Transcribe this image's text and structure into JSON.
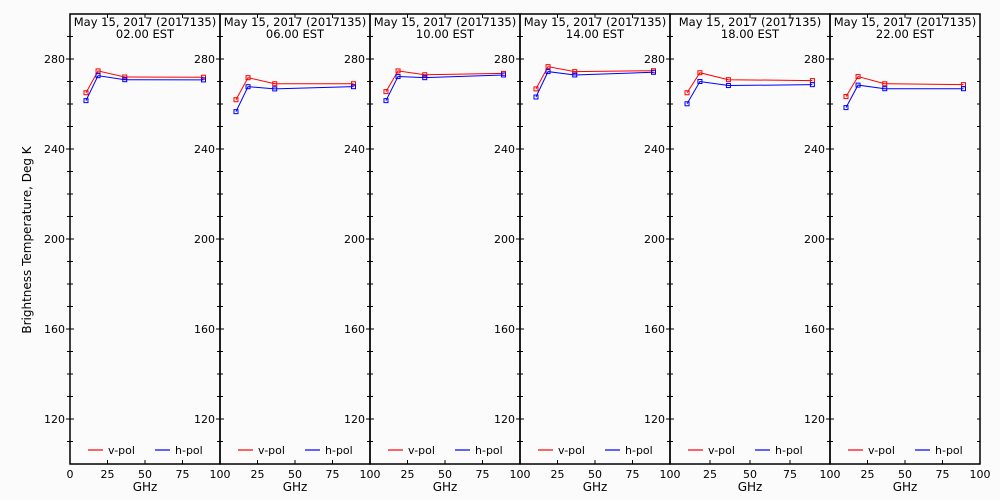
{
  "chart_data": {
    "type": "line",
    "ylabel": "Brightness Temperature, Deg K",
    "xlabel": "GHz",
    "xlim": [
      0,
      100
    ],
    "ylim": [
      100,
      300
    ],
    "xticks": [
      0,
      25,
      50,
      75,
      100
    ],
    "yticks": [
      120,
      160,
      200,
      240,
      280
    ],
    "grid": false,
    "legend": {
      "placement": "bottom",
      "entries": [
        "v-pol",
        "h-pol"
      ]
    },
    "colors": {
      "v-pol": "#ff0000",
      "h-pol": "#0000ff"
    },
    "x": [
      10.65,
      18.7,
      36.5,
      89.0
    ],
    "panels": [
      {
        "title": "May 15, 2017 (2017135)",
        "subtitle": "02.00 EST",
        "series": [
          {
            "name": "v-pol",
            "values": [
              265.0,
              274.7,
              272.0,
              271.9
            ]
          },
          {
            "name": "h-pol",
            "values": [
              261.5,
              272.6,
              270.8,
              270.7
            ]
          }
        ]
      },
      {
        "title": "May 15, 2017 (2017135)",
        "subtitle": "06.00 EST",
        "series": [
          {
            "name": "v-pol",
            "values": [
              261.9,
              271.7,
              269.0,
              269.0
            ]
          },
          {
            "name": "h-pol",
            "values": [
              256.6,
              267.7,
              266.7,
              267.7
            ]
          }
        ]
      },
      {
        "title": "May 15, 2017 (2017135)",
        "subtitle": "10.00 EST",
        "series": [
          {
            "name": "v-pol",
            "values": [
              265.5,
              274.7,
              273.0,
              273.6
            ]
          },
          {
            "name": "h-pol",
            "values": [
              261.5,
              272.2,
              271.7,
              272.9
            ]
          }
        ]
      },
      {
        "title": "May 15, 2017 (2017135)",
        "subtitle": "14.00 EST",
        "series": [
          {
            "name": "v-pol",
            "values": [
              266.7,
              276.6,
              274.4,
              274.8
            ]
          },
          {
            "name": "h-pol",
            "values": [
              263.1,
              274.4,
              272.9,
              274.1
            ]
          }
        ]
      },
      {
        "title": "May 15, 2017 (2017135)",
        "subtitle": "18.00 EST",
        "series": [
          {
            "name": "v-pol",
            "values": [
              265.0,
              273.9,
              270.8,
              270.4
            ]
          },
          {
            "name": "h-pol",
            "values": [
              260.1,
              270.0,
              268.2,
              268.6
            ]
          }
        ]
      },
      {
        "title": "May 15, 2017 (2017135)",
        "subtitle": "22.00 EST",
        "series": [
          {
            "name": "v-pol",
            "values": [
              263.3,
              272.2,
              269.0,
              268.6
            ]
          },
          {
            "name": "h-pol",
            "values": [
              258.4,
              268.4,
              266.8,
              266.8
            ]
          }
        ]
      }
    ]
  }
}
